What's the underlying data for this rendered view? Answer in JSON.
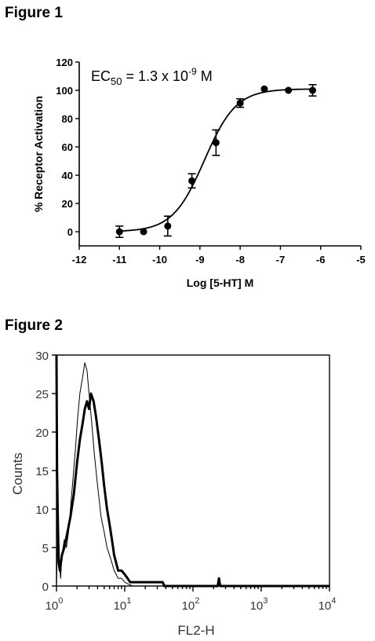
{
  "chart_data": [
    {
      "type": "scatter",
      "figure_label": "Figure 1",
      "xlabel": "Log [5-HT] M",
      "ylabel": "% Receptor Activation",
      "annotation": {
        "prefix": "EC",
        "sub": "50",
        "mid": " = 1.3 x 10",
        "sup": "-9",
        "suffix": " M"
      },
      "xlim": [
        -12,
        -5
      ],
      "ylim": [
        -10,
        120
      ],
      "x_ticks": [
        -12,
        -11,
        -10,
        -9,
        -8,
        -7,
        -6,
        -5
      ],
      "y_ticks": [
        0,
        20,
        40,
        60,
        80,
        100,
        120
      ],
      "grid": false,
      "series": [
        {
          "points": [
            {
              "x": -11.0,
              "y": 0,
              "err": 4
            },
            {
              "x": -10.4,
              "y": 0,
              "err": 0
            },
            {
              "x": -9.8,
              "y": 4,
              "err": 7
            },
            {
              "x": -9.2,
              "y": 36,
              "err": 5
            },
            {
              "x": -8.6,
              "y": 63,
              "err": 9
            },
            {
              "x": -8.0,
              "y": 91,
              "err": 3
            },
            {
              "x": -7.4,
              "y": 101,
              "err": 0
            },
            {
              "x": -6.8,
              "y": 100,
              "err": 0
            },
            {
              "x": -6.2,
              "y": 100,
              "err": 4
            }
          ],
          "fit": {
            "model": "sigmoidal dose-response",
            "bottom": 0,
            "top": 101,
            "log_ec50": -8.89,
            "hill": 1.1
          }
        }
      ]
    },
    {
      "type": "line",
      "figure_label": "Figure 2",
      "xlabel": "FL2-H",
      "ylabel": "Counts",
      "x_scale": "log",
      "xlim": [
        1,
        10000
      ],
      "ylim": [
        0,
        30
      ],
      "x_ticks": [
        1,
        10,
        100,
        1000,
        10000
      ],
      "y_ticks": [
        0,
        5,
        10,
        15,
        20,
        25,
        30
      ],
      "grid": false,
      "series": [
        {
          "style": "thin",
          "points": [
            [
              1.0,
              0
            ],
            [
              1.05,
              8
            ],
            [
              1.1,
              3
            ],
            [
              1.15,
              1
            ],
            [
              1.2,
              4
            ],
            [
              1.3,
              6
            ],
            [
              1.4,
              5
            ],
            [
              1.5,
              7
            ],
            [
              1.6,
              10
            ],
            [
              1.75,
              14
            ],
            [
              1.9,
              18
            ],
            [
              2.05,
              22
            ],
            [
              2.2,
              25
            ],
            [
              2.4,
              27
            ],
            [
              2.6,
              29
            ],
            [
              2.8,
              28
            ],
            [
              3.0,
              25
            ],
            [
              3.3,
              21
            ],
            [
              3.6,
              17
            ],
            [
              4.0,
              13
            ],
            [
              4.5,
              9
            ],
            [
              5.0,
              7
            ],
            [
              5.5,
              5
            ],
            [
              6.0,
              4
            ],
            [
              6.5,
              3
            ],
            [
              7.0,
              2
            ],
            [
              8.0,
              1
            ],
            [
              9.0,
              1
            ],
            [
              10,
              0.5
            ],
            [
              11,
              0.3
            ],
            [
              13,
              0
            ],
            [
              10000,
              0
            ]
          ]
        },
        {
          "style": "thick",
          "points": [
            [
              1.0,
              30
            ],
            [
              1.02,
              15
            ],
            [
              1.05,
              8
            ],
            [
              1.08,
              3
            ],
            [
              1.12,
              2
            ],
            [
              1.2,
              4
            ],
            [
              1.3,
              5
            ],
            [
              1.45,
              7
            ],
            [
              1.6,
              9
            ],
            [
              1.8,
              12
            ],
            [
              2.0,
              16
            ],
            [
              2.2,
              19
            ],
            [
              2.4,
              21
            ],
            [
              2.6,
              23
            ],
            [
              2.8,
              24
            ],
            [
              3.0,
              23
            ],
            [
              3.2,
              25
            ],
            [
              3.5,
              24
            ],
            [
              3.8,
              22
            ],
            [
              4.2,
              19
            ],
            [
              4.6,
              16
            ],
            [
              5.0,
              13
            ],
            [
              5.5,
              10
            ],
            [
              6.0,
              8
            ],
            [
              6.5,
              6
            ],
            [
              7.0,
              4
            ],
            [
              7.5,
              3
            ],
            [
              8.0,
              2
            ],
            [
              9.0,
              2
            ],
            [
              10,
              1.5
            ],
            [
              11,
              1
            ],
            [
              12,
              0.5
            ],
            [
              14,
              0.5
            ],
            [
              20,
              0.5
            ],
            [
              30,
              0.5
            ],
            [
              36,
              0.5
            ],
            [
              38,
              0
            ],
            [
              230,
              0
            ],
            [
              240,
              1
            ],
            [
              250,
              0
            ],
            [
              10000,
              0
            ]
          ]
        }
      ]
    }
  ]
}
